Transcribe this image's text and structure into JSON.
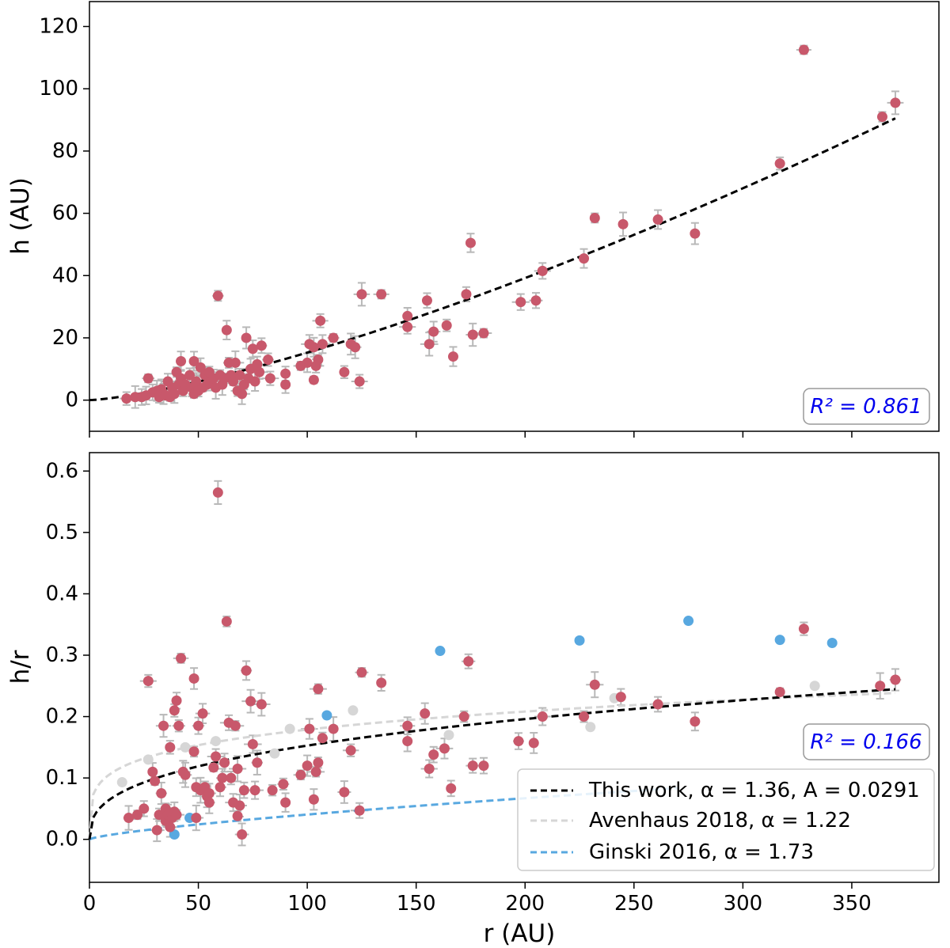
{
  "colors": {
    "points": "#c8586b",
    "errorbars": "#b8b8b8",
    "fit": "#000000",
    "avenhaus": "#d6d6d6",
    "ginski": "#58a8e0",
    "r2_text": "#0000ee"
  },
  "top": {
    "ylabel": "h (AU)",
    "r2_label": "R² = 0.861"
  },
  "bottom": {
    "ylabel": "h/r",
    "xlabel": "r (AU)",
    "r2_label": "R² = 0.166",
    "legend": [
      {
        "label": "This work, α = 1.36, A = 0.0291",
        "color": "#000000"
      },
      {
        "label": "Avenhaus 2018, α = 1.22",
        "color": "#d6d6d6"
      },
      {
        "label": "Ginski 2016, α = 1.73",
        "color": "#58a8e0"
      }
    ]
  },
  "chart_data": [
    {
      "type": "scatter",
      "xlabel": "",
      "ylabel": "h (AU)",
      "xlim": [
        0,
        390
      ],
      "ylim": [
        -10,
        128
      ],
      "xticks": [
        0,
        50,
        100,
        150,
        200,
        250,
        300,
        350
      ],
      "yticks": [
        0,
        20,
        40,
        60,
        80,
        100,
        120
      ],
      "show_xticklabels": false,
      "annotation": "R² = 0.861",
      "fit_line": {
        "name": "This work",
        "A": 0.0291,
        "alpha": 1.36,
        "x_range": [
          0,
          370
        ]
      },
      "points": [
        {
          "x": 17,
          "y": 0.5
        },
        {
          "x": 21,
          "y": 1
        },
        {
          "x": 24,
          "y": 1
        },
        {
          "x": 26,
          "y": 1.5
        },
        {
          "x": 27,
          "y": 7
        },
        {
          "x": 29,
          "y": 2.5
        },
        {
          "x": 31,
          "y": 3
        },
        {
          "x": 32,
          "y": 1
        },
        {
          "x": 33,
          "y": 3.5
        },
        {
          "x": 34,
          "y": 2
        },
        {
          "x": 35,
          "y": 1.5
        },
        {
          "x": 36,
          "y": 6
        },
        {
          "x": 37,
          "y": 1
        },
        {
          "x": 38,
          "y": 4
        },
        {
          "x": 39,
          "y": 2
        },
        {
          "x": 40,
          "y": 9
        },
        {
          "x": 41,
          "y": 5
        },
        {
          "x": 42,
          "y": 7
        },
        {
          "x": 42,
          "y": 12.5
        },
        {
          "x": 43,
          "y": 3
        },
        {
          "x": 44,
          "y": 5
        },
        {
          "x": 46,
          "y": 8
        },
        {
          "x": 47,
          "y": 4
        },
        {
          "x": 48,
          "y": 2
        },
        {
          "x": 48,
          "y": 12.5
        },
        {
          "x": 49,
          "y": 6
        },
        {
          "x": 50,
          "y": 3
        },
        {
          "x": 51,
          "y": 10.5
        },
        {
          "x": 52,
          "y": 4
        },
        {
          "x": 53,
          "y": 8
        },
        {
          "x": 54,
          "y": 5
        },
        {
          "x": 55,
          "y": 9
        },
        {
          "x": 56,
          "y": 6
        },
        {
          "x": 57,
          "y": 7
        },
        {
          "x": 58,
          "y": 4
        },
        {
          "x": 59,
          "y": 33.5
        },
        {
          "x": 60,
          "y": 8
        },
        {
          "x": 61,
          "y": 5
        },
        {
          "x": 62,
          "y": 7
        },
        {
          "x": 63,
          "y": 22.5
        },
        {
          "x": 64,
          "y": 12
        },
        {
          "x": 65,
          "y": 8
        },
        {
          "x": 66,
          "y": 6
        },
        {
          "x": 67,
          "y": 12
        },
        {
          "x": 68,
          "y": 3
        },
        {
          "x": 69,
          "y": 8
        },
        {
          "x": 70,
          "y": 2
        },
        {
          "x": 71,
          "y": 5
        },
        {
          "x": 72,
          "y": 20
        },
        {
          "x": 73,
          "y": 7
        },
        {
          "x": 74,
          "y": 10
        },
        {
          "x": 75,
          "y": 16.5
        },
        {
          "x": 76,
          "y": 6
        },
        {
          "x": 77,
          "y": 11.5
        },
        {
          "x": 78,
          "y": 9
        },
        {
          "x": 79,
          "y": 17.5
        },
        {
          "x": 82,
          "y": 13
        },
        {
          "x": 83,
          "y": 7
        },
        {
          "x": 90,
          "y": 8.5
        },
        {
          "x": 90,
          "y": 5
        },
        {
          "x": 97,
          "y": 11
        },
        {
          "x": 100,
          "y": 12
        },
        {
          "x": 101,
          "y": 18
        },
        {
          "x": 103,
          "y": 17
        },
        {
          "x": 103,
          "y": 6.5
        },
        {
          "x": 104,
          "y": 11
        },
        {
          "x": 105,
          "y": 13
        },
        {
          "x": 106,
          "y": 25.5
        },
        {
          "x": 107,
          "y": 18
        },
        {
          "x": 112,
          "y": 20
        },
        {
          "x": 117,
          "y": 9
        },
        {
          "x": 120,
          "y": 18
        },
        {
          "x": 122,
          "y": 17
        },
        {
          "x": 124,
          "y": 6
        },
        {
          "x": 125,
          "y": 34
        },
        {
          "x": 134,
          "y": 34
        },
        {
          "x": 146,
          "y": 27
        },
        {
          "x": 146,
          "y": 23.5
        },
        {
          "x": 155,
          "y": 32
        },
        {
          "x": 156,
          "y": 18
        },
        {
          "x": 158,
          "y": 22
        },
        {
          "x": 164,
          "y": 24
        },
        {
          "x": 167,
          "y": 14
        },
        {
          "x": 173,
          "y": 34
        },
        {
          "x": 175,
          "y": 50.5
        },
        {
          "x": 176,
          "y": 21
        },
        {
          "x": 181,
          "y": 21.5
        },
        {
          "x": 198,
          "y": 31.5
        },
        {
          "x": 205,
          "y": 32
        },
        {
          "x": 208,
          "y": 41.5
        },
        {
          "x": 227,
          "y": 45.5
        },
        {
          "x": 232,
          "y": 58.5
        },
        {
          "x": 245,
          "y": 56.5
        },
        {
          "x": 261,
          "y": 58
        },
        {
          "x": 278,
          "y": 53.5
        },
        {
          "x": 317,
          "y": 76
        },
        {
          "x": 328,
          "y": 112.5
        },
        {
          "x": 364,
          "y": 91
        },
        {
          "x": 370,
          "y": 95.5
        }
      ]
    },
    {
      "type": "scatter",
      "xlabel": "r (AU)",
      "ylabel": "h/r",
      "xlim": [
        0,
        390
      ],
      "ylim": [
        -0.07,
        0.63
      ],
      "xticks": [
        0,
        50,
        100,
        150,
        200,
        250,
        300,
        350
      ],
      "yticks": [
        0.0,
        0.1,
        0.2,
        0.3,
        0.4,
        0.5,
        0.6
      ],
      "xticklabels": [
        "0",
        "50",
        "100",
        "150",
        "200",
        "250",
        "300",
        "350"
      ],
      "yticklabels": [
        "0.0",
        "0.1",
        "0.2",
        "0.3",
        "0.4",
        "0.5",
        "0.6"
      ],
      "ytick_labels_top": [
        "0",
        "20",
        "40",
        "60",
        "80",
        "100",
        "120"
      ],
      "annotation": "R² = 0.166",
      "legend_placement": "lower-right",
      "curves": [
        {
          "name": "This work, α = 1.36, A = 0.0291",
          "A": 0.0291,
          "alpha": 1.36,
          "x_range": [
            0,
            370
          ]
        },
        {
          "name": "Avenhaus 2018, α = 1.22",
          "A": 0.0649,
          "alpha": 1.22,
          "x_range": [
            0,
            370
          ]
        },
        {
          "name": "Ginski 2016, α = 1.73",
          "A": 0.0014,
          "alpha": 1.73,
          "x_range": [
            0,
            270
          ]
        }
      ],
      "series": [
        {
          "name": "",
          "color": "#c8586b",
          "points": [
            {
              "x": 18,
              "y": 0.035
            },
            {
              "x": 22,
              "y": 0.04
            },
            {
              "x": 25,
              "y": 0.05
            },
            {
              "x": 27,
              "y": 0.258
            },
            {
              "x": 29,
              "y": 0.11
            },
            {
              "x": 30,
              "y": 0.095
            },
            {
              "x": 31,
              "y": 0.015
            },
            {
              "x": 32,
              "y": 0.04
            },
            {
              "x": 33,
              "y": 0.075
            },
            {
              "x": 34,
              "y": 0.185
            },
            {
              "x": 35,
              "y": 0.03
            },
            {
              "x": 35,
              "y": 0.05
            },
            {
              "x": 36,
              "y": 0.04
            },
            {
              "x": 37,
              "y": 0.15
            },
            {
              "x": 37,
              "y": 0.02
            },
            {
              "x": 38,
              "y": 0.035
            },
            {
              "x": 39,
              "y": 0.045
            },
            {
              "x": 39,
              "y": 0.21
            },
            {
              "x": 40,
              "y": 0.226
            },
            {
              "x": 40,
              "y": 0.04
            },
            {
              "x": 41,
              "y": 0.185
            },
            {
              "x": 42,
              "y": 0.295
            },
            {
              "x": 43,
              "y": 0.11
            },
            {
              "x": 44,
              "y": 0.105
            },
            {
              "x": 48,
              "y": 0.262
            },
            {
              "x": 48,
              "y": 0.143
            },
            {
              "x": 49,
              "y": 0.085
            },
            {
              "x": 49,
              "y": 0.035
            },
            {
              "x": 50,
              "y": 0.185
            },
            {
              "x": 51,
              "y": 0.08
            },
            {
              "x": 52,
              "y": 0.205
            },
            {
              "x": 53,
              "y": 0.085
            },
            {
              "x": 54,
              "y": 0.07
            },
            {
              "x": 55,
              "y": 0.075
            },
            {
              "x": 55,
              "y": 0.06
            },
            {
              "x": 57,
              "y": 0.117
            },
            {
              "x": 58,
              "y": 0.135
            },
            {
              "x": 59,
              "y": 0.565
            },
            {
              "x": 60,
              "y": 0.085
            },
            {
              "x": 61,
              "y": 0.1
            },
            {
              "x": 62,
              "y": 0.125
            },
            {
              "x": 63,
              "y": 0.355
            },
            {
              "x": 64,
              "y": 0.19
            },
            {
              "x": 65,
              "y": 0.1
            },
            {
              "x": 66,
              "y": 0.06
            },
            {
              "x": 67,
              "y": 0.185
            },
            {
              "x": 68,
              "y": 0.038
            },
            {
              "x": 68,
              "y": 0.115
            },
            {
              "x": 69,
              "y": 0.055
            },
            {
              "x": 70,
              "y": 0.008
            },
            {
              "x": 71,
              "y": 0.08
            },
            {
              "x": 72,
              "y": 0.275
            },
            {
              "x": 74,
              "y": 0.225
            },
            {
              "x": 75,
              "y": 0.155
            },
            {
              "x": 76,
              "y": 0.08
            },
            {
              "x": 77,
              "y": 0.125
            },
            {
              "x": 79,
              "y": 0.22
            },
            {
              "x": 84,
              "y": 0.08
            },
            {
              "x": 89,
              "y": 0.09
            },
            {
              "x": 90,
              "y": 0.06
            },
            {
              "x": 97,
              "y": 0.105
            },
            {
              "x": 100,
              "y": 0.12
            },
            {
              "x": 101,
              "y": 0.18
            },
            {
              "x": 103,
              "y": 0.065
            },
            {
              "x": 104,
              "y": 0.11
            },
            {
              "x": 105,
              "y": 0.245
            },
            {
              "x": 105,
              "y": 0.125
            },
            {
              "x": 107,
              "y": 0.165
            },
            {
              "x": 112,
              "y": 0.18
            },
            {
              "x": 117,
              "y": 0.077
            },
            {
              "x": 120,
              "y": 0.145
            },
            {
              "x": 124,
              "y": 0.047
            },
            {
              "x": 125,
              "y": 0.272
            },
            {
              "x": 134,
              "y": 0.255
            },
            {
              "x": 146,
              "y": 0.185
            },
            {
              "x": 146,
              "y": 0.16
            },
            {
              "x": 154,
              "y": 0.205
            },
            {
              "x": 156,
              "y": 0.115
            },
            {
              "x": 158,
              "y": 0.138
            },
            {
              "x": 163,
              "y": 0.148
            },
            {
              "x": 166,
              "y": 0.083
            },
            {
              "x": 172,
              "y": 0.2
            },
            {
              "x": 174,
              "y": 0.29
            },
            {
              "x": 176,
              "y": 0.12
            },
            {
              "x": 181,
              "y": 0.12
            },
            {
              "x": 197,
              "y": 0.16
            },
            {
              "x": 204,
              "y": 0.157
            },
            {
              "x": 208,
              "y": 0.2
            },
            {
              "x": 227,
              "y": 0.2
            },
            {
              "x": 232,
              "y": 0.252
            },
            {
              "x": 244,
              "y": 0.232
            },
            {
              "x": 261,
              "y": 0.22
            },
            {
              "x": 278,
              "y": 0.192
            },
            {
              "x": 317,
              "y": 0.24
            },
            {
              "x": 328,
              "y": 0.343
            },
            {
              "x": 363,
              "y": 0.25
            },
            {
              "x": 370,
              "y": 0.26
            }
          ]
        },
        {
          "name": "",
          "color": "#d6d6d6",
          "points": [
            {
              "x": 15,
              "y": 0.093
            },
            {
              "x": 27,
              "y": 0.13
            },
            {
              "x": 37,
              "y": 0.15
            },
            {
              "x": 44,
              "y": 0.15
            },
            {
              "x": 58,
              "y": 0.16
            },
            {
              "x": 85,
              "y": 0.14
            },
            {
              "x": 92,
              "y": 0.18
            },
            {
              "x": 121,
              "y": 0.21
            },
            {
              "x": 165,
              "y": 0.17
            },
            {
              "x": 230,
              "y": 0.183
            },
            {
              "x": 241,
              "y": 0.23
            },
            {
              "x": 333,
              "y": 0.25
            }
          ]
        },
        {
          "name": "",
          "color": "#58a8e0",
          "points": [
            {
              "x": 39,
              "y": 0.008
            },
            {
              "x": 46,
              "y": 0.035
            },
            {
              "x": 109,
              "y": 0.202
            },
            {
              "x": 161,
              "y": 0.307
            },
            {
              "x": 225,
              "y": 0.324
            },
            {
              "x": 275,
              "y": 0.356
            },
            {
              "x": 317,
              "y": 0.325
            },
            {
              "x": 341,
              "y": 0.32
            }
          ]
        }
      ]
    }
  ]
}
